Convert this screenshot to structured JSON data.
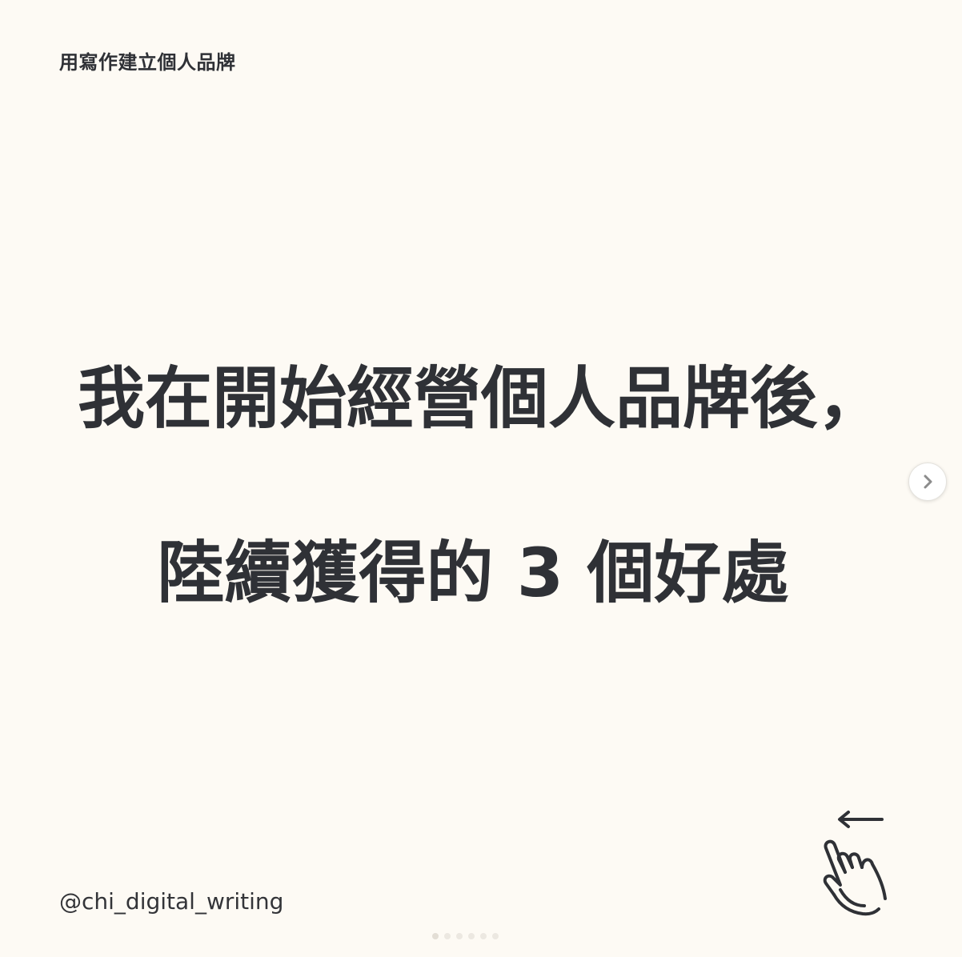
{
  "slide": {
    "series_tag": "用寫作建立個人品牌",
    "headline_line1": "我在開始經營個人品牌後，",
    "headline_line2": "陸續獲得的 3  個好處",
    "handle": "@chi_digital_writing"
  },
  "carousel": {
    "next_icon": "chevron-right-icon",
    "swipe_icon": "swipe-left-hand-icon",
    "total_slides": 6,
    "current_slide": 1
  },
  "colors": {
    "background": "#fdfaf4",
    "text": "#2f3136"
  }
}
